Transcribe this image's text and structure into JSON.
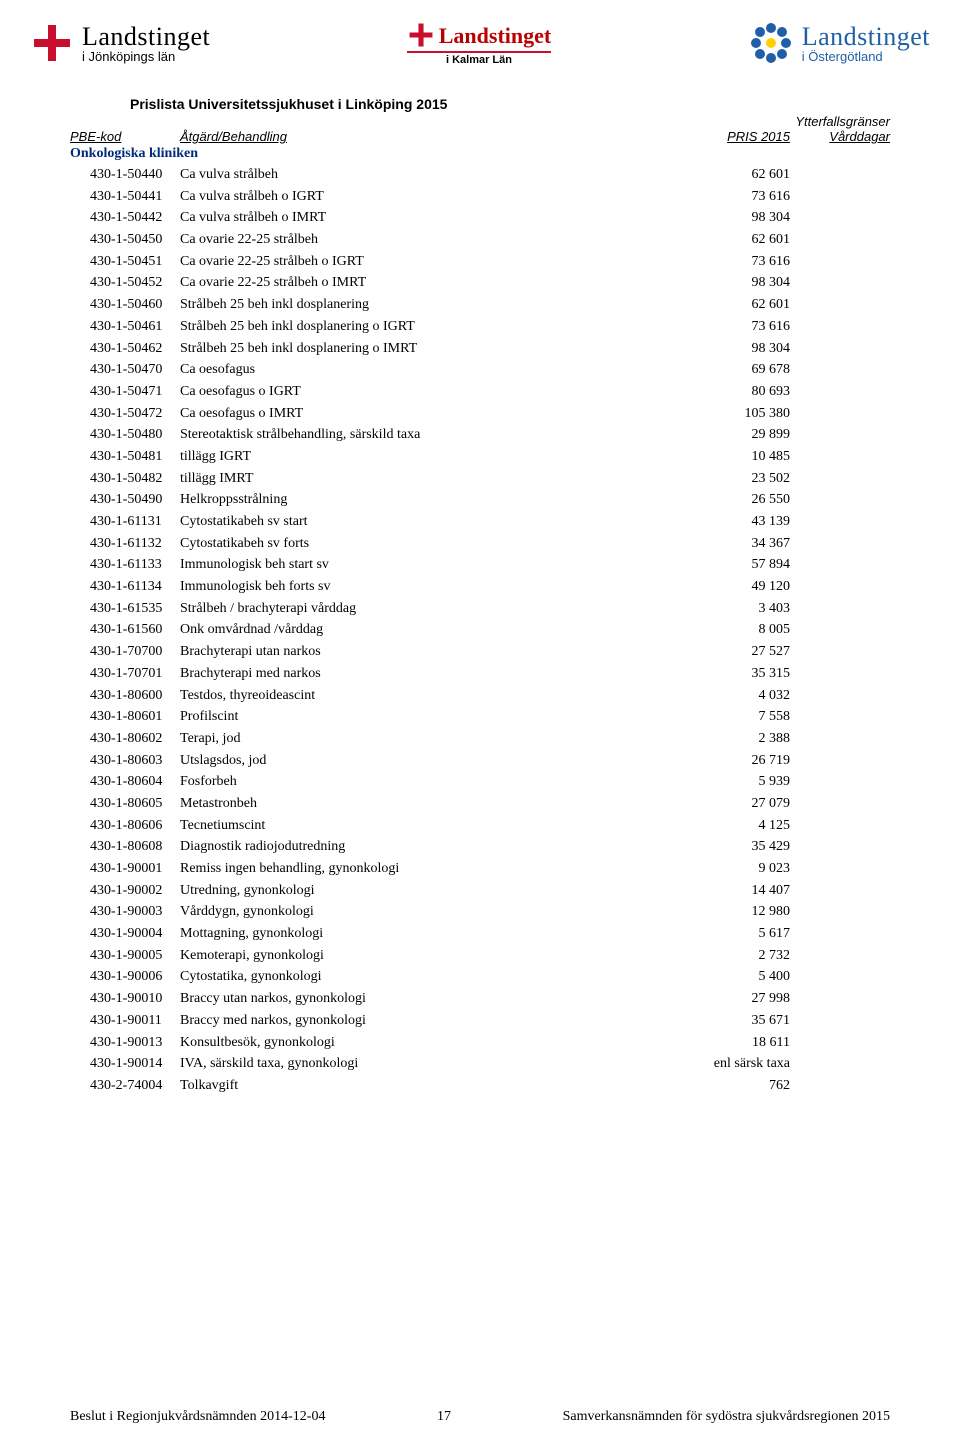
{
  "logos": {
    "left": {
      "title": "Landstinget",
      "sub": "i Jönköpings län"
    },
    "mid": {
      "title": "Landstinget",
      "sub": "i Kalmar Län"
    },
    "right": {
      "title": "Landstinget",
      "sub": "i Östergötland"
    }
  },
  "page_title": "Prislista Universitetssjukhuset i Linköping 2015",
  "ytter_label": "Ytterfallsgränser",
  "headers": {
    "code": "PBE-kod",
    "desc": "Åtgärd/Behandling",
    "price": "PRIS 2015",
    "days": "Vårddagar"
  },
  "department": "Onkologiska kliniken",
  "rows": [
    {
      "code": "430-1-50440",
      "desc": "Ca vulva strålbeh",
      "price": "62 601"
    },
    {
      "code": "430-1-50441",
      "desc": "Ca vulva strålbeh o IGRT",
      "price": "73 616"
    },
    {
      "code": "430-1-50442",
      "desc": "Ca vulva strålbeh o IMRT",
      "price": "98 304"
    },
    {
      "code": "430-1-50450",
      "desc": "Ca ovarie 22-25 strålbeh",
      "price": "62 601"
    },
    {
      "code": "430-1-50451",
      "desc": "Ca ovarie 22-25 strålbeh o IGRT",
      "price": "73 616"
    },
    {
      "code": "430-1-50452",
      "desc": "Ca ovarie 22-25 strålbeh o IMRT",
      "price": "98 304"
    },
    {
      "code": "430-1-50460",
      "desc": "Strålbeh 25 beh inkl dosplanering",
      "price": "62 601"
    },
    {
      "code": "430-1-50461",
      "desc": "Strålbeh 25 beh inkl dosplanering o IGRT",
      "price": "73 616"
    },
    {
      "code": "430-1-50462",
      "desc": "Strålbeh 25 beh inkl dosplanering o IMRT",
      "price": "98 304"
    },
    {
      "code": "430-1-50470",
      "desc": "Ca oesofagus",
      "price": "69 678"
    },
    {
      "code": "430-1-50471",
      "desc": "Ca oesofagus o IGRT",
      "price": "80 693"
    },
    {
      "code": "430-1-50472",
      "desc": "Ca oesofagus o IMRT",
      "price": "105 380"
    },
    {
      "code": "430-1-50480",
      "desc": "Stereotaktisk strålbehandling, särskild taxa",
      "price": "29 899"
    },
    {
      "code": "430-1-50481",
      "desc": "tillägg IGRT",
      "price": "10 485"
    },
    {
      "code": "430-1-50482",
      "desc": "tillägg IMRT",
      "price": "23 502"
    },
    {
      "code": "430-1-50490",
      "desc": "Helkroppsstrålning",
      "price": "26 550"
    },
    {
      "code": "430-1-61131",
      "desc": "Cytostatikabeh sv start",
      "price": "43 139"
    },
    {
      "code": "430-1-61132",
      "desc": "Cytostatikabeh sv forts",
      "price": "34 367"
    },
    {
      "code": "430-1-61133",
      "desc": "Immunologisk beh start sv",
      "price": "57 894"
    },
    {
      "code": "430-1-61134",
      "desc": "Immunologisk beh forts sv",
      "price": "49 120"
    },
    {
      "code": "430-1-61535",
      "desc": "Strålbeh / brachyterapi vårddag",
      "price": "3 403"
    },
    {
      "code": "430-1-61560",
      "desc": "Onk omvårdnad /vårddag",
      "price": "8 005"
    },
    {
      "code": "430-1-70700",
      "desc": "Brachyterapi utan narkos",
      "price": "27 527"
    },
    {
      "code": "430-1-70701",
      "desc": "Brachyterapi med narkos",
      "price": "35 315"
    },
    {
      "code": "430-1-80600",
      "desc": "Testdos, thyreoideascint",
      "price": "4 032"
    },
    {
      "code": "430-1-80601",
      "desc": "Profilscint",
      "price": "7 558"
    },
    {
      "code": "430-1-80602",
      "desc": "Terapi, jod",
      "price": "2 388"
    },
    {
      "code": "430-1-80603",
      "desc": "Utslagsdos, jod",
      "price": "26 719"
    },
    {
      "code": "430-1-80604",
      "desc": "Fosforbeh",
      "price": "5 939"
    },
    {
      "code": "430-1-80605",
      "desc": "Metastronbeh",
      "price": "27 079"
    },
    {
      "code": "430-1-80606",
      "desc": "Tecnetiumscint",
      "price": "4 125"
    },
    {
      "code": "430-1-80608",
      "desc": "Diagnostik radiojodutredning",
      "price": "35 429"
    },
    {
      "code": "430-1-90001",
      "desc": "Remiss ingen behandling, gynonkologi",
      "price": "9 023"
    },
    {
      "code": "430-1-90002",
      "desc": "Utredning, gynonkologi",
      "price": "14 407"
    },
    {
      "code": "430-1-90003",
      "desc": "Vårddygn, gynonkologi",
      "price": "12 980"
    },
    {
      "code": "430-1-90004",
      "desc": "Mottagning, gynonkologi",
      "price": "5 617"
    },
    {
      "code": "430-1-90005",
      "desc": "Kemoterapi, gynonkologi",
      "price": "2 732"
    },
    {
      "code": "430-1-90006",
      "desc": "Cytostatika, gynonkologi",
      "price": "5 400"
    },
    {
      "code": "430-1-90010",
      "desc": "Braccy utan narkos, gynonkologi",
      "price": "27 998"
    },
    {
      "code": "430-1-90011",
      "desc": "Braccy med narkos, gynonkologi",
      "price": "35 671"
    },
    {
      "code": "430-1-90013",
      "desc": "Konsultbesök, gynonkologi",
      "price": "18 611"
    },
    {
      "code": "430-1-90014",
      "desc": "IVA, särskild taxa, gynonkologi",
      "price": "enl särsk taxa"
    },
    {
      "code": "430-2-74004",
      "desc": "Tolkavgift",
      "price": "762"
    }
  ],
  "footer": {
    "left": "Beslut i Regionjukvårdsnämnden 2014-12-04",
    "pagenum": "17",
    "right": "Samverkansnämnden för sydöstra sjukvårdsregionen 2015"
  }
}
